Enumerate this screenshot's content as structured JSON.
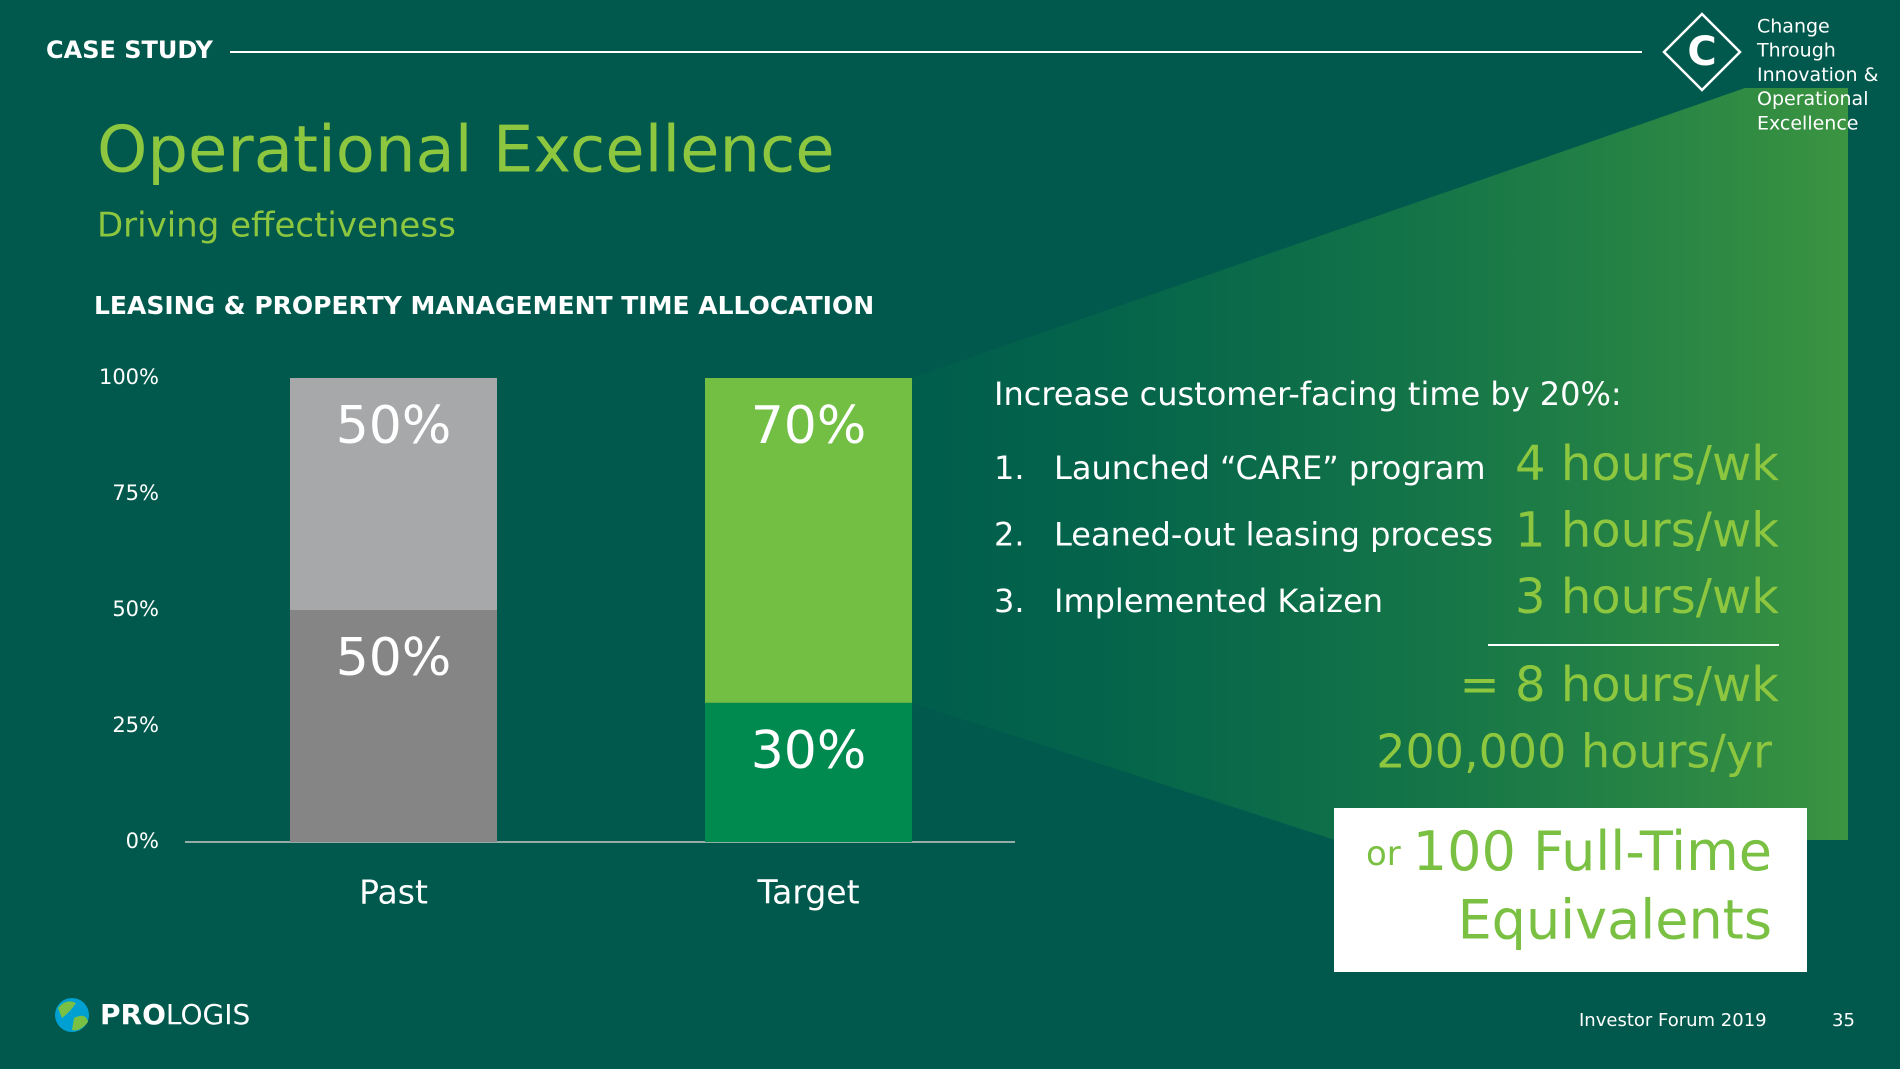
{
  "header": {
    "label": "CASE STUDY",
    "badge_letter": "C",
    "badge_lines": [
      "Change",
      "Through",
      "Innovation &",
      "Operational",
      "Excellence"
    ]
  },
  "title": "Operational Excellence",
  "subtitle": "Driving effectiveness",
  "chart_data": {
    "type": "stacked-bar",
    "title": "LEASING & PROPERTY MANAGEMENT TIME ALLOCATION",
    "categories": [
      "Past",
      "Target"
    ],
    "series": [
      {
        "colors": [
          "#858585",
          "#008a50"
        ],
        "values": [
          50,
          30
        ],
        "value_labels": [
          "50%",
          "30%"
        ]
      },
      {
        "colors": [
          "#a7a8a9",
          "#72bf44"
        ],
        "values": [
          50,
          70
        ],
        "value_labels": [
          "50%",
          "70%"
        ]
      }
    ],
    "ylim": [
      0,
      100
    ],
    "yticks": [
      {
        "value": 0,
        "label": "0%"
      },
      {
        "value": 25,
        "label": "25%"
      },
      {
        "value": 50,
        "label": "50%"
      },
      {
        "value": 75,
        "label": "75%"
      },
      {
        "value": 100,
        "label": "100%"
      }
    ],
    "grid": false
  },
  "callout": {
    "heading": "Increase customer-facing time by 20%:",
    "items": [
      {
        "number": "1.",
        "text": "Launched “CARE” program",
        "value": "4 hours/wk"
      },
      {
        "number": "2.",
        "text": "Leaned-out leasing process",
        "value": "1 hours/wk"
      },
      {
        "number": "3.",
        "text": "Implemented Kaizen",
        "value": "3 hours/wk"
      }
    ],
    "total": "= 8 hours/wk",
    "annual": "200,000 hours/yr",
    "box_prefix": "or",
    "box_lines": [
      "100 Full-Time",
      "Equivalents"
    ]
  },
  "footer": {
    "logo_bold": "PRO",
    "logo_rest": "LOGIS",
    "event": "Investor Forum 2019",
    "page": "35"
  }
}
